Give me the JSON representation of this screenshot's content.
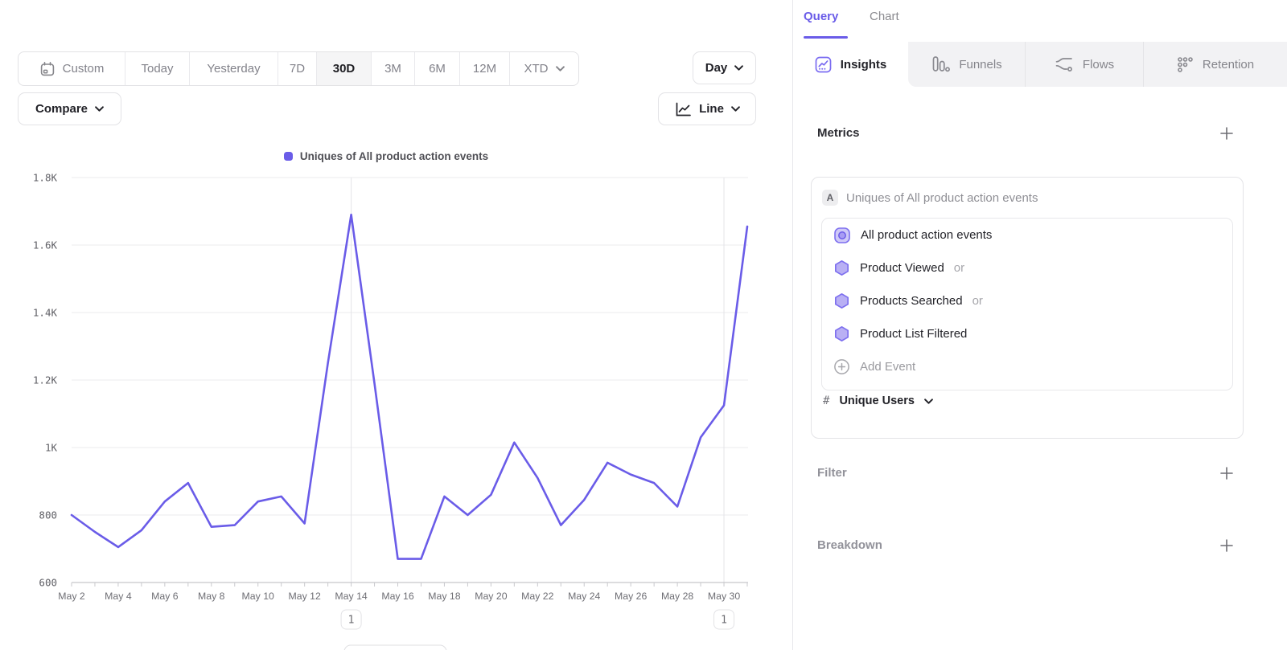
{
  "toolbar": {
    "date_ranges": [
      {
        "label": "Custom",
        "icon": "calendar-icon"
      },
      {
        "label": "Today"
      },
      {
        "label": "Yesterday"
      },
      {
        "label": "7D"
      },
      {
        "label": "30D",
        "selected": true
      },
      {
        "label": "3M"
      },
      {
        "label": "6M"
      },
      {
        "label": "12M"
      },
      {
        "label": "XTD",
        "icon": "chevron-down-icon"
      }
    ],
    "granularity": {
      "label": "Day",
      "icon": "chevron-down-icon"
    },
    "compare": {
      "label": "Compare",
      "icon": "chevron-down-icon"
    },
    "chart_type": {
      "label": "Line",
      "icon": "line-chart-icon"
    }
  },
  "legend": {
    "label": "Uniques of All product action events",
    "color": "#6a5ce8"
  },
  "chart_data": {
    "type": "line",
    "title": "Uniques of All product action events",
    "x": [
      "May 2",
      "May 3",
      "May 4",
      "May 5",
      "May 6",
      "May 7",
      "May 8",
      "May 9",
      "May 10",
      "May 11",
      "May 12",
      "May 13",
      "May 14",
      "May 15",
      "May 16",
      "May 17",
      "May 18",
      "May 19",
      "May 20",
      "May 21",
      "May 22",
      "May 23",
      "May 24",
      "May 25",
      "May 26",
      "May 27",
      "May 28",
      "May 29",
      "May 30",
      "May 31"
    ],
    "x_label_every": 2,
    "series": [
      {
        "name": "Uniques of All product action events",
        "color": "#6a5ce8",
        "values": [
          800,
          750,
          705,
          755,
          840,
          895,
          765,
          770,
          840,
          855,
          775,
          1250,
          1690,
          1190,
          670,
          670,
          855,
          800,
          860,
          1015,
          910,
          770,
          845,
          955,
          920,
          895,
          825,
          1030,
          1125,
          1655
        ]
      }
    ],
    "ylim": [
      600,
      1800
    ],
    "yticks": [
      {
        "value": 600,
        "label": "600"
      },
      {
        "value": 800,
        "label": "800"
      },
      {
        "value": 1000,
        "label": "1K"
      },
      {
        "value": 1200,
        "label": "1.2K"
      },
      {
        "value": 1400,
        "label": "1.4K"
      },
      {
        "value": 1600,
        "label": "1.6K"
      },
      {
        "value": 1800,
        "label": "1.8K"
      }
    ],
    "grid": "horizontal",
    "legend_position": "top",
    "annotations": [
      {
        "x": "May 14",
        "label": "1"
      },
      {
        "x": "May 30",
        "label": "1"
      }
    ]
  },
  "panel": {
    "tabs": [
      {
        "label": "Query",
        "active": true
      },
      {
        "label": "Chart",
        "active": false
      }
    ],
    "report_tabs": [
      {
        "label": "Insights",
        "icon": "insights-icon",
        "active": true
      },
      {
        "label": "Funnels",
        "icon": "funnels-icon",
        "active": false
      },
      {
        "label": "Flows",
        "icon": "flows-icon",
        "active": false
      },
      {
        "label": "Retention",
        "icon": "retention-icon",
        "active": false
      }
    ],
    "metrics": {
      "title": "Metrics",
      "add_icon": "plus-icon",
      "card": {
        "badge": "A",
        "title": "Uniques of All product action events",
        "events": [
          {
            "label": "All product action events",
            "icon": "all-events-icon",
            "suffix": ""
          },
          {
            "label": "Product Viewed",
            "icon": "hexagon-event-icon",
            "suffix": "or"
          },
          {
            "label": "Products Searched",
            "icon": "hexagon-event-icon",
            "suffix": "or"
          },
          {
            "label": "Product List Filtered",
            "icon": "hexagon-event-icon",
            "suffix": ""
          },
          {
            "label": "Add Event",
            "icon": "add-circle-icon",
            "suffix": ""
          }
        ],
        "measurement": {
          "prefix": "#",
          "label": "Unique Users",
          "icon": "chevron-down-icon"
        }
      }
    },
    "filter": {
      "title": "Filter",
      "add_icon": "plus-icon"
    },
    "breakdown": {
      "title": "Breakdown",
      "add_icon": "plus-icon"
    }
  }
}
